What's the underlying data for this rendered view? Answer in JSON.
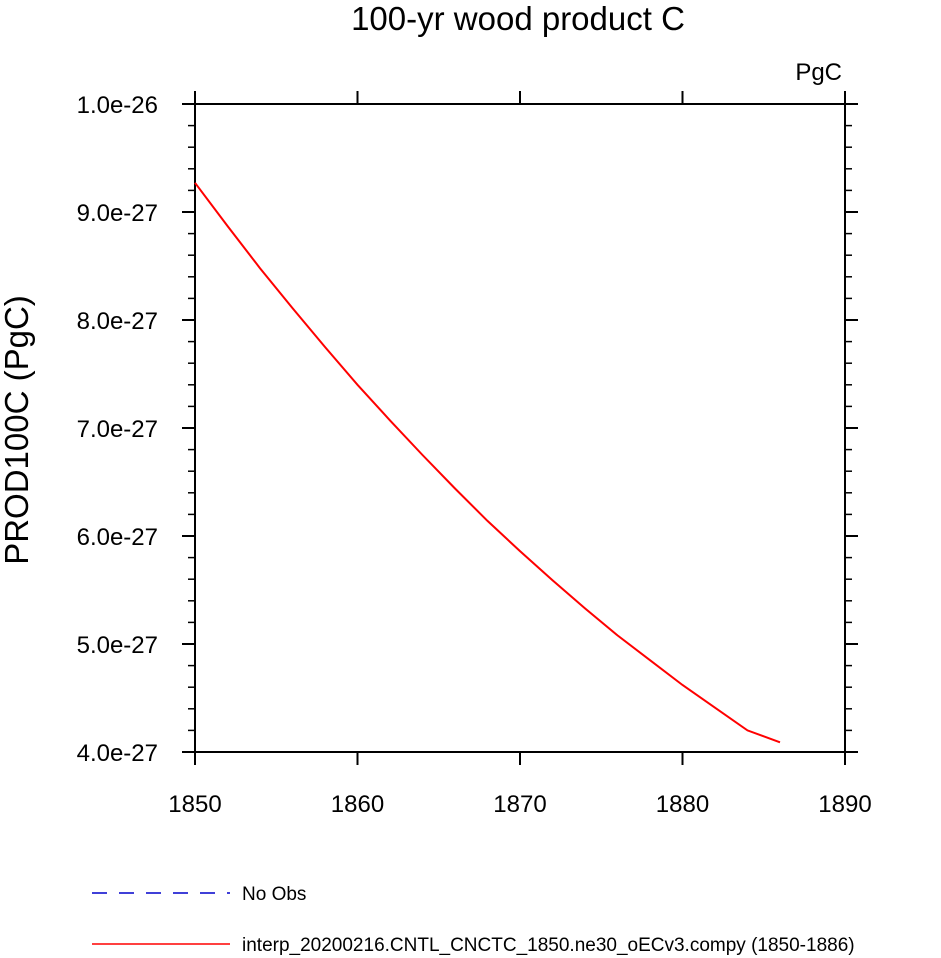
{
  "chart_data": {
    "type": "line",
    "title": "100-yr wood product C",
    "units": "PgC",
    "ylabel": "PROD100C  (PgC)",
    "xlabel": "",
    "xlim": [
      1850,
      1890
    ],
    "ylim": [
      4e-27,
      1e-26
    ],
    "x_ticks": [
      1850,
      1860,
      1870,
      1880,
      1890
    ],
    "x_tick_labels": [
      "1850",
      "1860",
      "1870",
      "1880",
      "1890"
    ],
    "y_ticks": [
      4e-27,
      5e-27,
      6e-27,
      7e-27,
      8e-27,
      9e-27,
      1e-26
    ],
    "y_tick_labels": [
      "4.0e-27",
      "5.0e-27",
      "6.0e-27",
      "7.0e-27",
      "8.0e-27",
      "9.0e-27",
      "1.0e-26"
    ],
    "series": [
      {
        "name": "interp_20200216.CNTL_CNCTC_1850.ne30_oECv3.compy (1850-1886)",
        "color": "#ff0000",
        "style": "solid",
        "x": [
          1850,
          1852,
          1854,
          1856,
          1858,
          1860,
          1862,
          1864,
          1866,
          1868,
          1870,
          1872,
          1874,
          1876,
          1878,
          1880,
          1882,
          1884,
          1886
        ],
        "y": [
          9.27e-27,
          8.87e-27,
          8.48e-27,
          8.11e-27,
          7.75e-27,
          7.4e-27,
          7.07e-27,
          6.75e-27,
          6.44e-27,
          6.14e-27,
          5.86e-27,
          5.59e-27,
          5.33e-27,
          5.08e-27,
          4.85e-27,
          4.62e-27,
          4.41e-27,
          4.2e-27,
          4.09e-27
        ]
      }
    ],
    "legend": [
      {
        "label": "No Obs",
        "color": "#0000cc",
        "style": "dashed"
      },
      {
        "label": "interp_20200216.CNTL_CNCTC_1850.ne30_oECv3.compy (1850-1886)",
        "color": "#ff0000",
        "style": "solid"
      }
    ]
  }
}
